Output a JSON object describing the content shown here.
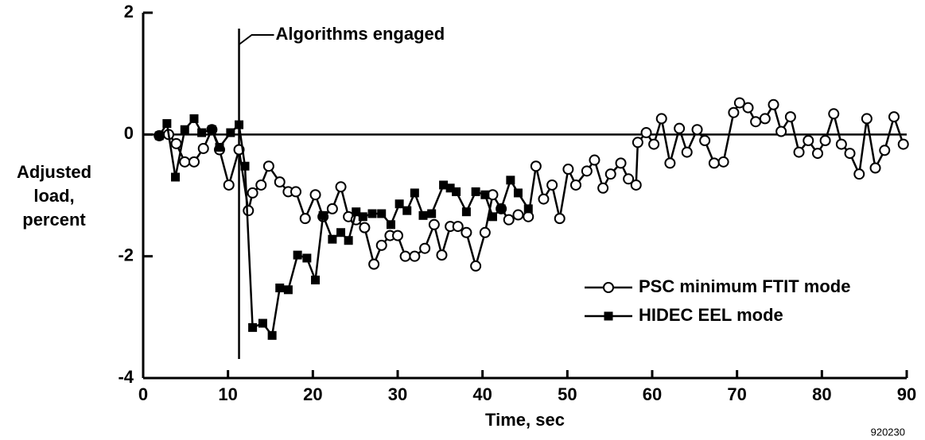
{
  "chart_data": {
    "type": "line",
    "xlabel": "Time, sec",
    "ylabel": [
      "Adjusted",
      "load,",
      "percent"
    ],
    "xlim": [
      0,
      90
    ],
    "ylim": [
      -4,
      2
    ],
    "xticks": [
      0,
      10,
      20,
      30,
      40,
      50,
      60,
      70,
      80,
      90
    ],
    "yticks": [
      -4,
      -2,
      0,
      2
    ],
    "legend": "lower right",
    "annotation": {
      "text": "Algorithms engaged",
      "x": 11.3
    },
    "footnote": "920230",
    "series": [
      {
        "name": "PSC minimum FTIT mode",
        "color": "#000000",
        "marker": "circle",
        "x": [
          1.9,
          3,
          3.9,
          4.9,
          6,
          7.1,
          8.1,
          9,
          10.1,
          11.3,
          12.4,
          12.9,
          13.9,
          14.8,
          16.1,
          17.1,
          18,
          19.1,
          20.3,
          21.2,
          22.3,
          23.3,
          24.2,
          25.1,
          26.1,
          27.2,
          28.1,
          29.1,
          30,
          30.9,
          32,
          33.2,
          34.3,
          35.2,
          36.2,
          37.1,
          38.1,
          39.2,
          40.3,
          41.2,
          42.2,
          43.1,
          44.2,
          45.4,
          46.3,
          47.2,
          48.2,
          49.1,
          50.1,
          51,
          52.3,
          53.2,
          54.2,
          55.1,
          56.3,
          57.2,
          58.1,
          58.3,
          59.3,
          60.2,
          61.1,
          62.1,
          63.2,
          64.1,
          65.3,
          66.2,
          67.3,
          68.4,
          69.6,
          70.3,
          71.3,
          72.2,
          73.3,
          74.3,
          75.2,
          76.3,
          77.3,
          78.4,
          79.5,
          80.4,
          81.4,
          82.3,
          83.3,
          84.4,
          85.3,
          86.3,
          87.4,
          88.5,
          89.6
        ],
        "values": [
          -0.02,
          0,
          -0.15,
          -0.45,
          -0.45,
          -0.23,
          0.08,
          -0.25,
          -0.83,
          -0.25,
          -1.25,
          -0.96,
          -0.83,
          -0.52,
          -0.78,
          -0.94,
          -0.94,
          -1.38,
          -0.99,
          -1.35,
          -1.22,
          -0.86,
          -1.35,
          -1.4,
          -1.53,
          -2.13,
          -1.82,
          -1.66,
          -1.66,
          -2.0,
          -2.0,
          -1.87,
          -1.48,
          -1.98,
          -1.51,
          -1.51,
          -1.61,
          -2.16,
          -1.61,
          -0.99,
          -1.22,
          -1.4,
          -1.32,
          -1.35,
          -0.52,
          -1.06,
          -0.83,
          -1.38,
          -0.57,
          -0.83,
          -0.6,
          -0.42,
          -0.88,
          -0.65,
          -0.47,
          -0.73,
          -0.83,
          -0.13,
          0.03,
          -0.16,
          0.26,
          -0.47,
          0.1,
          -0.29,
          0.08,
          -0.1,
          -0.47,
          -0.45,
          0.36,
          0.52,
          0.44,
          0.21,
          0.26,
          0.49,
          0.05,
          0.29,
          -0.29,
          -0.1,
          -0.31,
          -0.1,
          0.34,
          -0.16,
          -0.31,
          -0.65,
          0.26,
          -0.55,
          -0.26,
          0.29,
          -0.16
        ]
      },
      {
        "name": "HIDEC EEL mode",
        "color": "#000000",
        "marker": "square",
        "x": [
          1.9,
          2.8,
          3.8,
          4.9,
          6,
          6.9,
          8.1,
          9,
          10.3,
          11.3,
          12,
          12.9,
          14.1,
          15.2,
          16.1,
          17.1,
          18.2,
          19.3,
          20.3,
          21.2,
          22.3,
          23.3,
          24.2,
          25.1,
          25.9,
          27,
          28.1,
          29.2,
          30.2,
          31.1,
          32,
          33,
          34,
          35.4,
          36.2,
          36.9,
          38.1,
          39.2,
          40.3,
          41.2,
          42.2,
          43.3,
          44.2,
          45.4
        ],
        "values": [
          -0.02,
          0.18,
          -0.7,
          0.08,
          0.26,
          0.03,
          0.08,
          -0.21,
          0.03,
          0.16,
          -0.52,
          -3.17,
          -3.1,
          -3.3,
          -2.52,
          -2.55,
          -1.98,
          -2.03,
          -2.39,
          -1.33,
          -1.72,
          -1.61,
          -1.74,
          -1.27,
          -1.35,
          -1.3,
          -1.3,
          -1.48,
          -1.14,
          -1.25,
          -0.96,
          -1.33,
          -1.3,
          -0.83,
          -0.88,
          -0.94,
          -1.27,
          -0.94,
          -0.99,
          -1.35,
          -1.22,
          -0.75,
          -0.96,
          -1.22
        ]
      }
    ]
  }
}
